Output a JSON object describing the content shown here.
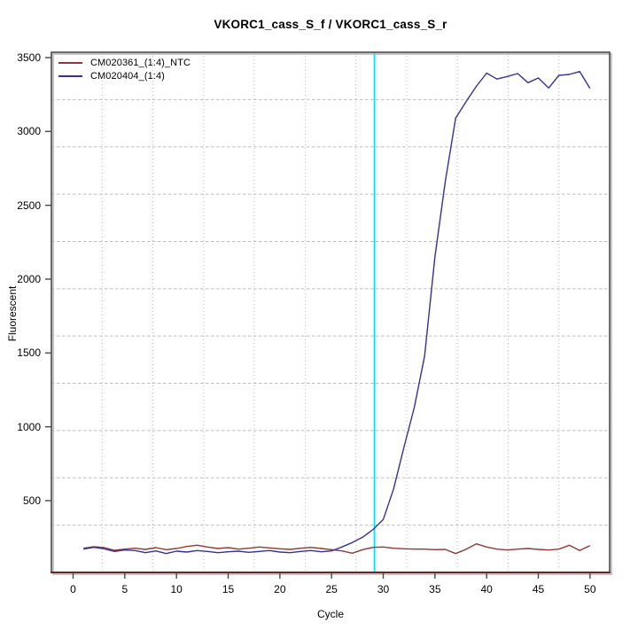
{
  "chart_data": {
    "type": "line",
    "title": "VKORC1_cass_S_f / VKORC1_cass_S_r",
    "xlabel": "Cycle",
    "ylabel": "Fluorescent",
    "x_ticks": [
      0,
      5,
      10,
      15,
      20,
      25,
      30,
      35,
      40,
      45,
      50
    ],
    "y_ticks": [
      500,
      1000,
      1500,
      2000,
      2500,
      3000,
      3500
    ],
    "xlim": [
      -2.1,
      51.9
    ],
    "ylim": [
      14,
      3536
    ],
    "grid": {
      "nx": 11,
      "ny": 11,
      "style": "dotted",
      "color": "#bdbdbd"
    },
    "threshold_line": {
      "x": 29.15,
      "color": "#00e4f2"
    },
    "axis_style": {
      "box_color": "#474747",
      "box_shadow_color": "#b3b3b3",
      "x_axis_line_color": "#6e2222",
      "tick_color": "#474747"
    },
    "legend": {
      "position": "top-left"
    },
    "series": [
      {
        "name": "CM020361_(1:4)_NTC",
        "color": "#943636",
        "x": [
          1,
          2,
          3,
          4,
          5,
          6,
          7,
          8,
          9,
          10,
          11,
          12,
          13,
          14,
          15,
          16,
          17,
          18,
          19,
          20,
          21,
          22,
          23,
          24,
          25,
          26,
          27,
          28,
          29,
          30,
          31,
          32,
          33,
          34,
          35,
          36,
          37,
          38,
          39,
          40,
          41,
          42,
          43,
          44,
          45,
          46,
          47,
          48,
          49,
          50
        ],
        "values": [
          178,
          188,
          182,
          164,
          172,
          178,
          170,
          182,
          168,
          176,
          190,
          198,
          186,
          176,
          182,
          172,
          178,
          186,
          180,
          174,
          170,
          178,
          184,
          176,
          168,
          160,
          144,
          168,
          184,
          186,
          178,
          174,
          172,
          172,
          168,
          170,
          142,
          170,
          208,
          186,
          172,
          166,
          172,
          176,
          170,
          166,
          172,
          198,
          162,
          196
        ]
      },
      {
        "name": "CM020404_(1:4)",
        "color": "#32329b",
        "x": [
          1,
          2,
          3,
          4,
          5,
          6,
          7,
          8,
          9,
          10,
          11,
          12,
          13,
          14,
          15,
          16,
          17,
          18,
          19,
          20,
          21,
          22,
          23,
          24,
          25,
          26,
          27,
          28,
          29,
          30,
          31,
          32,
          33,
          34,
          35,
          36,
          37,
          38,
          39,
          40,
          41,
          42,
          43,
          44,
          45,
          46,
          47,
          48,
          49,
          50
        ],
        "values": [
          172,
          184,
          174,
          156,
          166,
          162,
          148,
          160,
          142,
          158,
          152,
          162,
          156,
          148,
          154,
          158,
          150,
          156,
          162,
          152,
          148,
          156,
          162,
          154,
          160,
          186,
          216,
          252,
          304,
          372,
          580,
          860,
          1130,
          1480,
          2150,
          2660,
          3090,
          3200,
          3305,
          3395,
          3355,
          3372,
          3392,
          3330,
          3362,
          3294,
          3380,
          3386,
          3406,
          3292
        ]
      }
    ]
  }
}
